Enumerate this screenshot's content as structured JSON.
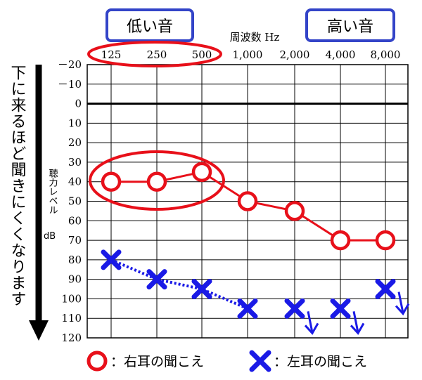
{
  "chart_data": {
    "type": "line",
    "title": "",
    "xlabel": "周波数 Hz",
    "ylabel": "聴力レベル dB",
    "categories": [
      "125",
      "250",
      "500",
      "1,000",
      "2,000",
      "4,000",
      "8,000"
    ],
    "y_ticks": [
      "－20",
      "－10",
      "0",
      "10",
      "20",
      "30",
      "40",
      "50",
      "60",
      "70",
      "80",
      "90",
      "100",
      "110",
      "120"
    ],
    "ylim": [
      -20,
      120
    ],
    "y_inverted": true,
    "grid": true,
    "series": [
      {
        "name": "右耳の聞こえ",
        "marker": "circle",
        "line": "solid",
        "color": "#e8101a",
        "values": [
          40,
          40,
          35,
          50,
          55,
          70,
          70
        ]
      },
      {
        "name": "左耳の聞こえ",
        "marker": "cross",
        "line": "dotted",
        "color": "#1a1ae6",
        "values": [
          80,
          90,
          95,
          105,
          105,
          105,
          95
        ],
        "connected_points": 4,
        "no_response_arrows": [
          4,
          5,
          6
        ]
      }
    ],
    "annotations": {
      "low_sound_label": "低い音",
      "high_sound_label": "高い音",
      "side_label": "下に来るほど聞きにくくなります"
    },
    "legend": {
      "placement": "bottom",
      "right_label": "：右耳の聞こえ",
      "left_label": "：左耳の聞こえ"
    },
    "colors": {
      "red": "#e8101a",
      "blue": "#1a1ae6",
      "box_border": "#3344c8",
      "grid": "#000000"
    }
  }
}
